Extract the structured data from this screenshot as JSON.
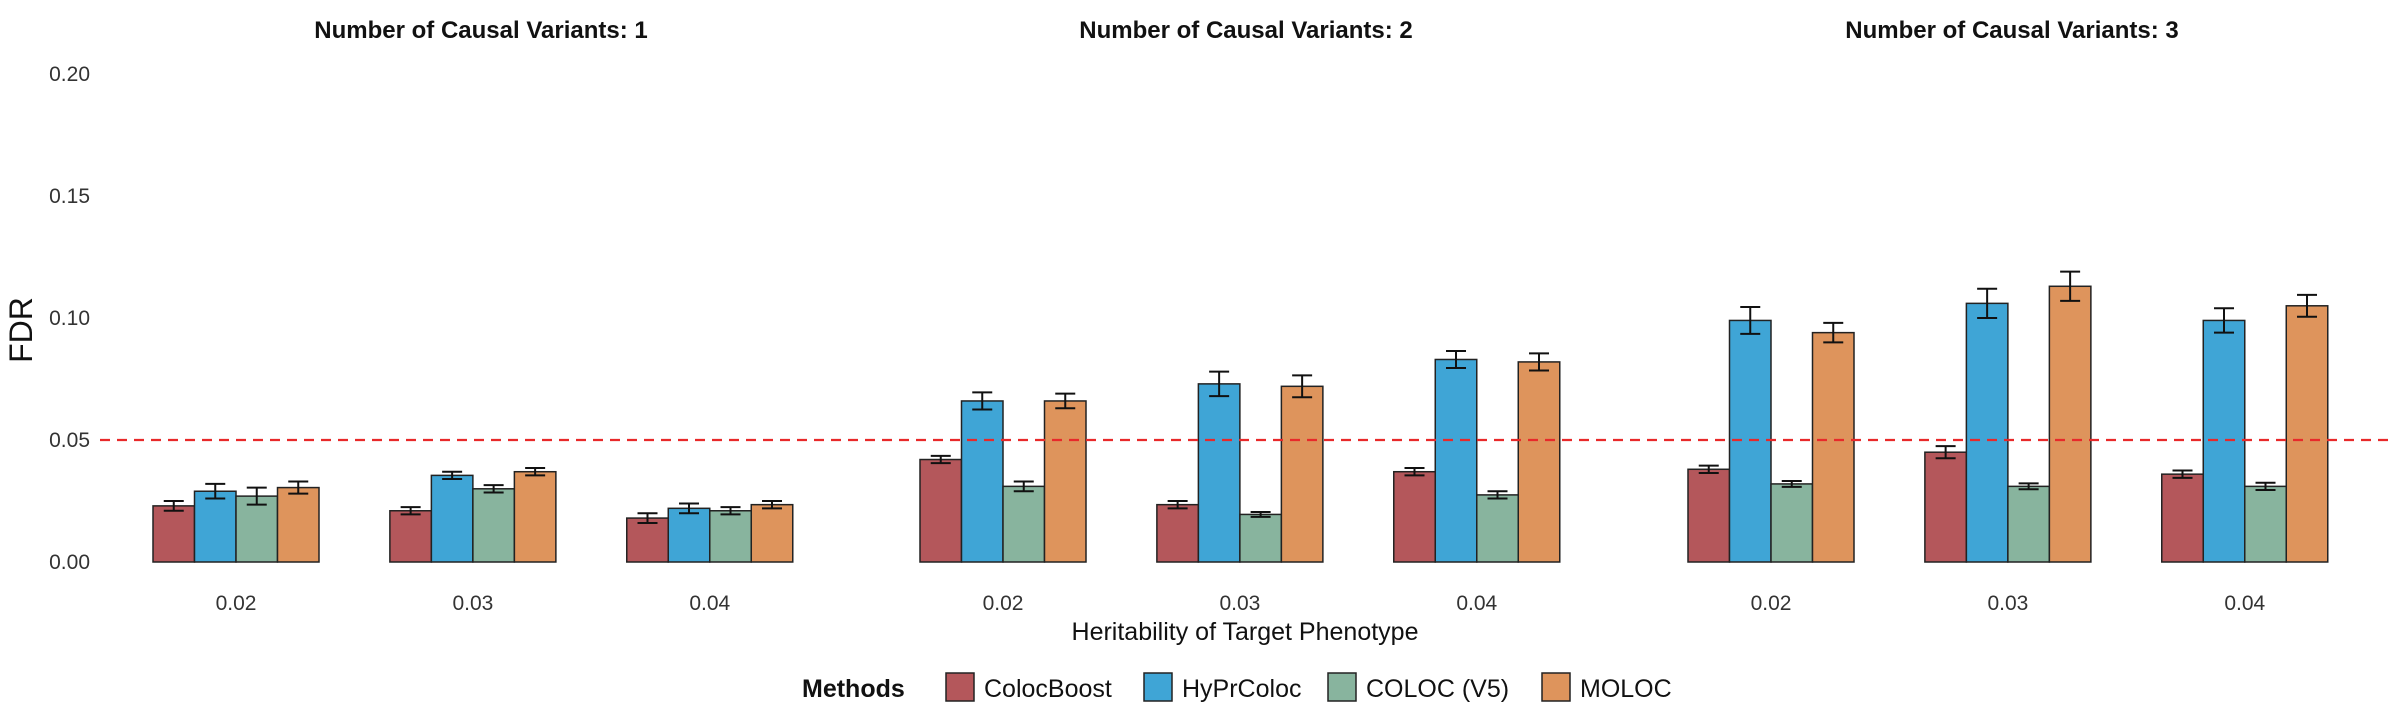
{
  "chart_data": {
    "type": "bar",
    "facet_label_prefix": "Number of Causal Variants: ",
    "facets": [
      "1",
      "2",
      "3"
    ],
    "categories": [
      "0.02",
      "0.03",
      "0.04"
    ],
    "xlabel": "Heritability of Target Phenotype",
    "ylabel": "FDR",
    "ylim": [
      0,
      0.2
    ],
    "yticks": [
      "0.00",
      "0.05",
      "0.10",
      "0.15",
      "0.20"
    ],
    "reference_line": {
      "value": 0.05,
      "color": "#e8292a",
      "style": "dashed"
    },
    "legend": {
      "title": "Methods",
      "position": "bottom"
    },
    "series": [
      {
        "name": "ColocBoost",
        "color": "#b4575b",
        "values": [
          [
            0.023,
            0.021,
            0.018
          ],
          [
            0.042,
            0.0235,
            0.037
          ],
          [
            0.038,
            0.045,
            0.036
          ]
        ],
        "errors": [
          [
            0.002,
            0.0015,
            0.002
          ],
          [
            0.0015,
            0.0015,
            0.0015
          ],
          [
            0.0015,
            0.0025,
            0.0015
          ]
        ]
      },
      {
        "name": "HyPrColoc",
        "color": "#3fa5d6",
        "values": [
          [
            0.029,
            0.0355,
            0.022
          ],
          [
            0.066,
            0.073,
            0.083
          ],
          [
            0.099,
            0.106,
            0.099
          ]
        ],
        "errors": [
          [
            0.003,
            0.0015,
            0.002
          ],
          [
            0.0035,
            0.005,
            0.0035
          ],
          [
            0.0055,
            0.006,
            0.005
          ]
        ]
      },
      {
        "name": "COLOC (V5)",
        "color": "#88b49e",
        "values": [
          [
            0.027,
            0.03,
            0.021
          ],
          [
            0.031,
            0.0195,
            0.0275
          ],
          [
            0.032,
            0.031,
            0.031
          ]
        ],
        "errors": [
          [
            0.0035,
            0.0015,
            0.0015
          ],
          [
            0.002,
            0.001,
            0.0015
          ],
          [
            0.0012,
            0.0012,
            0.0015
          ]
        ]
      },
      {
        "name": "MOLOC",
        "color": "#de945c",
        "values": [
          [
            0.0305,
            0.037,
            0.0235
          ],
          [
            0.066,
            0.072,
            0.082
          ],
          [
            0.094,
            0.113,
            0.105
          ]
        ],
        "errors": [
          [
            0.0025,
            0.0015,
            0.0015
          ],
          [
            0.003,
            0.0045,
            0.0035
          ],
          [
            0.004,
            0.006,
            0.0045
          ]
        ]
      }
    ]
  }
}
